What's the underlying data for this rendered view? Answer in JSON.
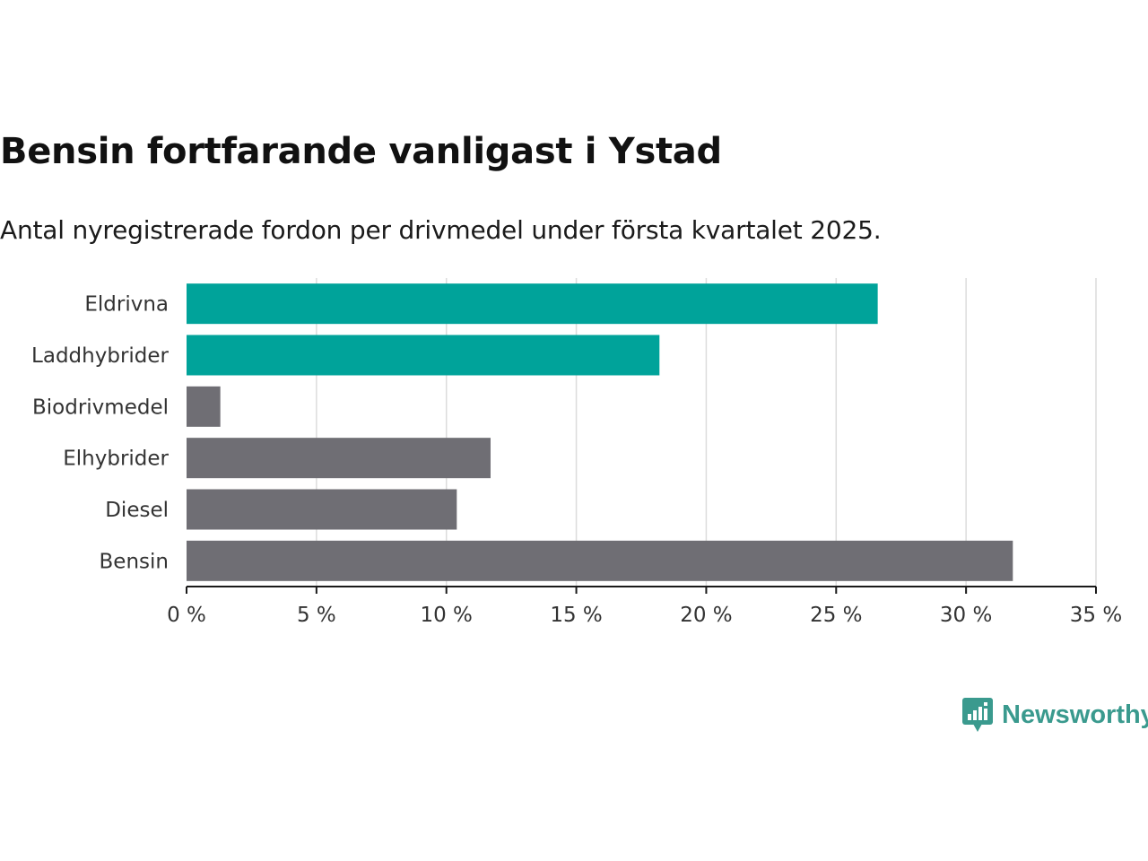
{
  "title": "Bensin fortfarande vanligast i Ystad",
  "subtitle": "Antal nyregistrerade fordon per drivmedel under första kvartalet 2025.",
  "logo": {
    "name": "Newsworthy",
    "icon": "newsworthy-logo-icon",
    "color": "#3a9a8e"
  },
  "chart_data": {
    "type": "bar",
    "orientation": "horizontal",
    "categories": [
      "Eldrivna",
      "Laddhybrider",
      "Biodrivmedel",
      "Elhybrider",
      "Diesel",
      "Bensin"
    ],
    "values": [
      26.6,
      18.2,
      1.3,
      11.7,
      10.4,
      31.8
    ],
    "colors": [
      "#00a39a",
      "#00a39a",
      "#6f6e74",
      "#6f6e74",
      "#6f6e74",
      "#6f6e74"
    ],
    "xlim": [
      0,
      35
    ],
    "xticks": [
      0,
      5,
      10,
      15,
      20,
      25,
      30,
      35
    ],
    "xtick_labels": [
      "0 %",
      "5 %",
      "10 %",
      "15 %",
      "20 %",
      "25 %",
      "30 %",
      "35 %"
    ],
    "xlabel": "",
    "ylabel": "",
    "grid": true
  }
}
